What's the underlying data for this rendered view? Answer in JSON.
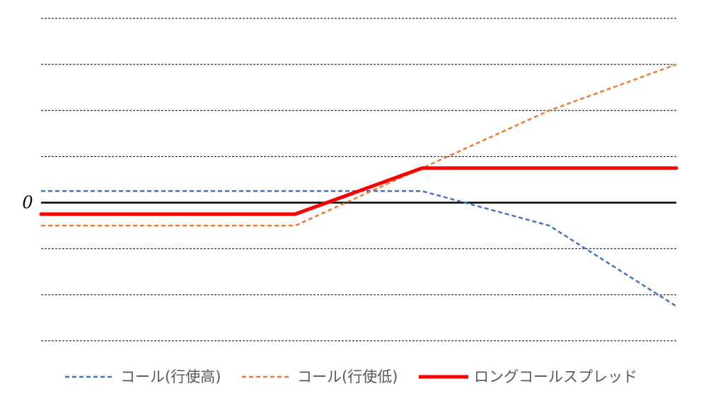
{
  "chart_data": {
    "type": "line",
    "x": [
      0,
      1,
      2,
      3,
      4,
      5
    ],
    "ylim": [
      -3,
      4
    ],
    "zero_label": "0",
    "grid": true,
    "legend_position": "bottom",
    "series": [
      {
        "name": "コール(行使高)",
        "color": "#4472C4",
        "style": "dashed",
        "values": [
          0.25,
          0.25,
          0.25,
          0.25,
          -0.5,
          -2.25
        ]
      },
      {
        "name": "コール(行使低)",
        "color": "#ED7D31",
        "style": "dashed",
        "values": [
          -0.5,
          -0.5,
          -0.5,
          0.75,
          2.0,
          3.0
        ]
      },
      {
        "name": "ロングコールスプレッド",
        "color": "#FF0000",
        "style": "solid",
        "values": [
          -0.25,
          -0.25,
          -0.25,
          0.75,
          0.75,
          0.75
        ]
      }
    ]
  }
}
